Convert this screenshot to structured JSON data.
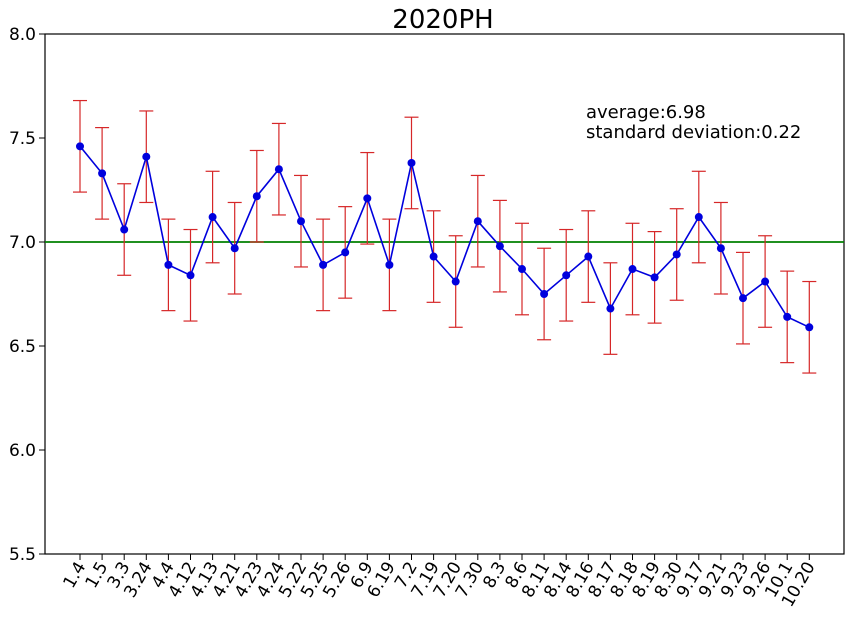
{
  "chart_data": {
    "type": "line",
    "title": "2020PH",
    "xlabel": "",
    "ylabel": "",
    "ylim": [
      5.5,
      8.0
    ],
    "yticks": [
      "5.5",
      "6.0",
      "6.5",
      "7.0",
      "7.5",
      "8.0"
    ],
    "grid": false,
    "categories": [
      "1.4",
      "1.5",
      "3.3",
      "3.24",
      "4.4",
      "4.12",
      "4.13",
      "4.21",
      "4.23",
      "4.24",
      "5.22",
      "5.25",
      "5.26",
      "6.9",
      "6.19",
      "7.2",
      "7.19",
      "7.20",
      "7.30",
      "8.3",
      "8.6",
      "8.11",
      "8.14",
      "8.16",
      "8.17",
      "8.18",
      "8.19",
      "8.30",
      "9.17",
      "9.21",
      "9.23",
      "9.26",
      "10.1",
      "10.20"
    ],
    "series": [
      {
        "values": [
          7.46,
          7.33,
          7.06,
          7.41,
          6.89,
          6.84,
          7.12,
          6.97,
          7.22,
          7.35,
          7.1,
          6.89,
          6.95,
          7.21,
          6.89,
          7.38,
          6.93,
          6.81,
          7.1,
          6.98,
          6.87,
          6.75,
          6.84,
          6.93,
          6.68,
          6.87,
          6.83,
          6.94,
          7.12,
          6.97,
          6.73,
          6.81,
          6.64,
          6.59
        ],
        "error": 0.22,
        "line_color": "#0000dd",
        "marker_color": "#0000dd",
        "error_color": "#d62728"
      }
    ],
    "reference_line": {
      "y": 7.0,
      "color": "#008000"
    },
    "annotations": [
      "average:6.98",
      "standard deviation:0.22"
    ]
  }
}
